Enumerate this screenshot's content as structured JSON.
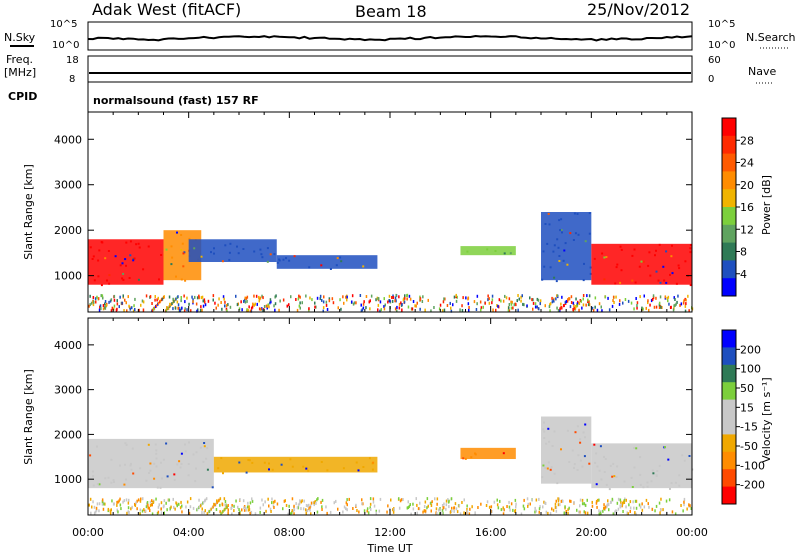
{
  "header": {
    "station": "Adak West (fitACF)",
    "beam": "Beam 18",
    "date": "25/Nov/2012"
  },
  "top_panels": {
    "nsky": {
      "left_label": "N.Sky",
      "right_label": "N.Search",
      "left_ticks": [
        "10^5",
        "10^0"
      ],
      "right_ticks": [
        "10^5",
        "10^0"
      ]
    },
    "freq": {
      "left_label_1": "Freq.",
      "left_label_2": "[MHz]",
      "right_label": "Nave",
      "left_ticks": [
        "18",
        "8"
      ],
      "right_ticks": [
        "60",
        "0"
      ]
    },
    "cpid": {
      "left_label": "CPID",
      "text": "normalsound (fast) 157 RF"
    }
  },
  "colors": {
    "power_scale": [
      "#0000ff",
      "#1e4fbf",
      "#2f7a56",
      "#5fa35f",
      "#7ccf3c",
      "#f0b400",
      "#ff8c00",
      "#ff5a00",
      "#ff2a00",
      "#ff0000"
    ],
    "velocity_scale": [
      "#ff0000",
      "#ff4a00",
      "#ff8c00",
      "#f0a800",
      "#c8c8c8",
      "#c8c8c8",
      "#7ccf3c",
      "#2f7a56",
      "#1e4fbf",
      "#0000ff"
    ]
  },
  "chart_data": [
    {
      "type": "heatmap",
      "name": "power",
      "xlabel": "",
      "ylabel": "Slant Range [km]",
      "x_ticks": [
        "00:00",
        "04:00",
        "08:00",
        "12:00",
        "16:00",
        "20:00",
        "00:00"
      ],
      "y_ticks": [
        "1000",
        "2000",
        "3000",
        "4000"
      ],
      "ylim": [
        200,
        4600
      ],
      "colorbar": {
        "label": "Power [dB]",
        "ticks": [
          "4",
          "8",
          "12",
          "16",
          "20",
          "24",
          "28"
        ]
      },
      "regions": [
        {
          "t": [
            0.0,
            3.0
          ],
          "r": [
            800,
            1800
          ],
          "level": 28
        },
        {
          "t": [
            3.0,
            4.5
          ],
          "r": [
            900,
            2000
          ],
          "level": 20
        },
        {
          "t": [
            4.0,
            7.5
          ],
          "r": [
            1300,
            1800
          ],
          "level": 4
        },
        {
          "t": [
            7.5,
            11.5
          ],
          "r": [
            1150,
            1450
          ],
          "level": 4
        },
        {
          "t": [
            14.8,
            17.0
          ],
          "r": [
            1450,
            1650
          ],
          "level": 14
        },
        {
          "t": [
            18.0,
            20.0
          ],
          "r": [
            900,
            2400
          ],
          "level": 4
        },
        {
          "t": [
            20.0,
            24.0
          ],
          "r": [
            800,
            1700
          ],
          "level": 28
        }
      ]
    },
    {
      "type": "heatmap",
      "name": "velocity",
      "xlabel": "Time UT",
      "ylabel": "Slant Range [km]",
      "x_ticks": [
        "00:00",
        "04:00",
        "08:00",
        "12:00",
        "16:00",
        "20:00",
        "00:00"
      ],
      "y_ticks": [
        "1000",
        "2000",
        "3000",
        "4000"
      ],
      "ylim": [
        200,
        4600
      ],
      "colorbar": {
        "label": "Velocity [m s⁻¹]",
        "ticks": [
          "200",
          "100",
          "50",
          "15",
          "-15",
          "-50",
          "-100",
          "-200"
        ]
      },
      "regions": [
        {
          "t": [
            0.0,
            5.0
          ],
          "r": [
            800,
            1900
          ],
          "level": 0
        },
        {
          "t": [
            5.0,
            11.5
          ],
          "r": [
            1150,
            1500
          ],
          "level": -40
        },
        {
          "t": [
            14.8,
            17.0
          ],
          "r": [
            1450,
            1700
          ],
          "level": -90
        },
        {
          "t": [
            18.0,
            20.0
          ],
          "r": [
            900,
            2400
          ],
          "level": 0
        },
        {
          "t": [
            20.0,
            24.0
          ],
          "r": [
            800,
            1800
          ],
          "level": 0
        }
      ]
    }
  ]
}
